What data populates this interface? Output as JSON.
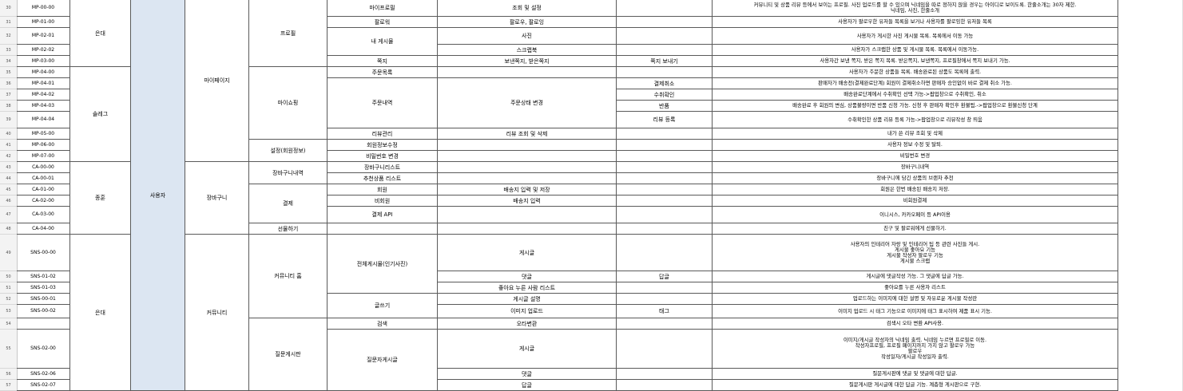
{
  "rows": [
    "30",
    "31",
    "32",
    "33",
    "34",
    "35",
    "36",
    "37",
    "38",
    "39",
    "40",
    "41",
    "42",
    "43",
    "44",
    "45",
    "46",
    "47",
    "48",
    "49",
    "50",
    "51",
    "52",
    "53",
    "54",
    "55",
    "56",
    "57"
  ],
  "codes": [
    "MP-00-00",
    "MP-01-00",
    "MP-02-01",
    "MP-02-02",
    "MP-03-00",
    "MP-04-00",
    "MP-04-01",
    "MP-04-02",
    "MP-04-03",
    "MP-04-04",
    "MP-05-00",
    "MP-06-00",
    "MP-07-00",
    "CA-00-00",
    "CA-00-01",
    "CA-01-00",
    "CA-02-00",
    "CA-03-00",
    "CA-04-00",
    "SNS-00-00",
    "SNS-01-02",
    "SNS-01-03",
    "SNS-00-01",
    "SNS-00-02",
    "",
    "SNS-02-00",
    "SNS-02-06",
    "SNS-02-07"
  ],
  "owners": {
    "a": "은대",
    "b": "솔레그",
    "c": "종훈",
    "d": "은대"
  },
  "role": "사용자",
  "level1": {
    "mypage": "마이페이지",
    "cart": "장바구니",
    "community": "커뮤니티"
  },
  "level2": {
    "profile": "프로필",
    "myshop": "마이쇼핑",
    "settings": "설정(회원정보)",
    "cartlist": "장바구니내역",
    "payment": "결제",
    "gift": "선물하기",
    "home": "커뮤니티 홈",
    "qna": "질문게시판"
  },
  "level3": {
    "myprofile": "마이프로필",
    "follow": "팔로워",
    "myposts": "내 게시물",
    "note": "쪽지",
    "orderlist": "주문목록",
    "orders": "주문내역",
    "review": "리뷰관리",
    "memberedit": "회원정보수정",
    "pwchange": "비밀번호 변경",
    "cartlist": "장바구니리스트",
    "recommend": "추천상품 리스트",
    "member": "회원",
    "nonmember": "비회원",
    "payapi": "결제 API",
    "allposts": "전체게시물(인기사진)",
    "write": "글쓰기",
    "search": "검색",
    "qnapost": "질문자게시글"
  },
  "level4": {
    "myprofile": "조회 및 설정",
    "follow": "팔로우, 팔로잉",
    "photo": "사진",
    "scrap": "스크랩북",
    "note": "보낸쪽지, 받은쪽지",
    "status": "주문상태 변경",
    "review": "리뷰 조회 및 삭제",
    "member": "배송지 입력 및 저장",
    "nonmember": "배송지 입력",
    "post": "게시글",
    "comment": "댓글",
    "likes": "좋아요 누른 사람 리스트",
    "postdesc": "게시글 설명",
    "imgupload": "이미지 업로드",
    "typo": "오타변환",
    "qnapost": "게시글",
    "qnacomment": "댓글",
    "qnaanswer": "답글"
  },
  "level5": {
    "sendnote": "쪽지 보내기",
    "cancel": "결제취소",
    "confirm": "수취확인",
    "refund": "반품",
    "reviewreg": "리뷰 등록",
    "reply": "답글",
    "tag": "태그"
  },
  "desc": [
    "커뮤니티 및 상품 리뷰 등에서 보이는 프로필. 사진 업로드를 할 수 있으며 닉네임을 따로 정하지 않을 경우는 아이디로 보이도록. 한줄소개는 30자 제한.\n닉네임, 사진, 한줄소개",
    "사용자가 팔로우한 유저들 목록을 보거나 사용자를 팔로잉한 유저들 목록",
    "사용자가 게시한 사진 게시물 목록. 목록에서 이동 가능",
    "사용자가 스크랩한 상품 및 게시물 목록. 목록에서 이동가능.",
    "사용자간 보낸 쪽지, 받은 쪽지 목록. 받은쪽지, 보낸쪽지, 프로필창에서 쪽지 보내기 가능.",
    "사용자가 주문한 상품들 목록. 배송완료된 상품도 목록에 출력.",
    "판매자가 배송전(결제완료단계) 회원이 결제취소하면 판매자 승인없이 바로 결제 취소 가능.",
    "배송완료단계에서 수취확인 선택 가능->팝업창으로 수취확인, 취소",
    "배송완료 후 회원의 변심, 상품불량이면 반품 신청 가능. 신청 후 판매자 확인후 환불됨.->팝업창으로 환불신청 단계",
    "수취확인한 상품 리뷰 등록 가능->팝업창으로 리뷰작성 창 띄움",
    "내가 쓴 리뷰 조회 및 삭제",
    "사용자 정보 수정 및 탈퇴.",
    "비밀번호 변경",
    "장바구니내역",
    "장바구니에 담긴 상품의 브랜차 추천",
    "회원은 한번 배송된 배송지 저장.",
    "비회원결제",
    "이니시스, 카카오페이 등 API이용",
    "친구 및 팔로워에게 선물하기.",
    "사용자의 인테리어 자랑 및 인테리어 팁 등 관련 사진들 게시.\n게시물 좋아요 기능\n게시물 작성자 팔로우 기능\n게시물 스크랩",
    "게시글에 댓글작성 가능. 그 댓글에 답글 가능.",
    "좋아요를 누른 사용자 리스트",
    "업로드하는 이미지에 대한 설명 및 자유로운 게시물 작성란",
    "이미지 업로드 시 태그 기능으로 이미지에 태그 표시하여 제품 표시 기능.",
    "검색시 오타 변환 API사용.",
    "이미지/게시글 작성자의 닉네임 출력. 닉네임 누르면 프로필로 이동.\n작성자프로필, 프로필 페이지까지 가지 않고 팔로우 가능\n팔로우\n작성일자/게시글 작성일자 출력.",
    "질문게시판에 댓글 및 댓글에 대한 답글.",
    "질문게시판 게시글에 대한 답글 기능. 계층형 게시판으로 구현."
  ]
}
